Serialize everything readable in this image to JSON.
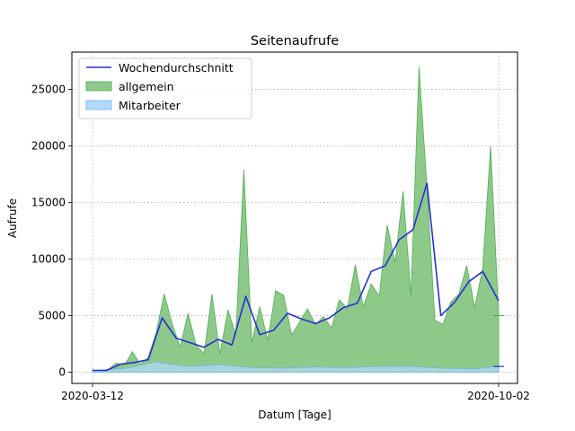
{
  "chart_data": {
    "type": "area",
    "title": "Seitenaufrufe",
    "xlabel": "Datum [Tage]",
    "ylabel": "Aufrufe",
    "x_start": "2020-03-12",
    "x_end": "2020-10-02",
    "x_ticks": [
      "2020-03-12",
      "2020-10-02"
    ],
    "y_ticks": [
      0,
      5000,
      10000,
      15000,
      20000,
      25000
    ],
    "y_tick_labels": [
      "0",
      "5000",
      "10000",
      "15000",
      "20000",
      "25000"
    ],
    "ylim": [
      -1000,
      28300
    ],
    "grid": true,
    "legend_position": "top-left",
    "series": [
      {
        "name": "Wochendurchschnitt",
        "kind": "line",
        "color": "#2630d6",
        "x": [
          "2020-03-12",
          "2020-03-19",
          "2020-03-26",
          "2020-04-02",
          "2020-04-09",
          "2020-04-16",
          "2020-04-23",
          "2020-04-30",
          "2020-05-07",
          "2020-05-14",
          "2020-05-21",
          "2020-05-28",
          "2020-06-04",
          "2020-06-11",
          "2020-06-18",
          "2020-06-25",
          "2020-07-02",
          "2020-07-09",
          "2020-07-16",
          "2020-07-23",
          "2020-07-30",
          "2020-08-06",
          "2020-08-13",
          "2020-08-20",
          "2020-08-27",
          "2020-09-03",
          "2020-09-10",
          "2020-09-17",
          "2020-09-24",
          "2020-10-02"
        ],
        "values": [
          150,
          150,
          700,
          850,
          1100,
          4800,
          3000,
          2600,
          2200,
          2900,
          2400,
          6700,
          3300,
          3700,
          5200,
          4700,
          4300,
          4800,
          5700,
          6100,
          8900,
          9400,
          11700,
          12600,
          16700,
          5000,
          6200,
          8000,
          8900,
          6300
        ]
      },
      {
        "name": "allgemein",
        "kind": "area",
        "color": "#4caf50",
        "fill": "#8ec98a",
        "x": [
          "2020-03-12",
          "2020-03-16",
          "2020-03-20",
          "2020-03-24",
          "2020-03-28",
          "2020-04-01",
          "2020-04-05",
          "2020-04-09",
          "2020-04-13",
          "2020-04-17",
          "2020-04-21",
          "2020-04-25",
          "2020-04-29",
          "2020-05-03",
          "2020-05-07",
          "2020-05-11",
          "2020-05-15",
          "2020-05-19",
          "2020-05-23",
          "2020-05-27",
          "2020-05-31",
          "2020-06-04",
          "2020-06-08",
          "2020-06-12",
          "2020-06-16",
          "2020-06-20",
          "2020-06-24",
          "2020-06-28",
          "2020-07-02",
          "2020-07-06",
          "2020-07-10",
          "2020-07-14",
          "2020-07-18",
          "2020-07-22",
          "2020-07-26",
          "2020-07-30",
          "2020-08-03",
          "2020-08-07",
          "2020-08-11",
          "2020-08-15",
          "2020-08-19",
          "2020-08-23",
          "2020-08-27",
          "2020-08-31",
          "2020-09-04",
          "2020-09-08",
          "2020-09-12",
          "2020-09-16",
          "2020-09-20",
          "2020-09-24",
          "2020-09-28",
          "2020-10-02"
        ],
        "values": [
          200,
          100,
          250,
          800,
          600,
          1800,
          700,
          1300,
          3500,
          6900,
          4300,
          2200,
          5200,
          2400,
          1600,
          6900,
          1600,
          5500,
          3300,
          17900,
          2600,
          5800,
          2800,
          7200,
          6800,
          3300,
          4400,
          5600,
          4200,
          4900,
          3900,
          6400,
          5600,
          9500,
          5800,
          7800,
          6700,
          13000,
          9700,
          16000,
          6800,
          27000,
          16400,
          4600,
          4200,
          6200,
          6900,
          9400,
          5700,
          9200,
          20000,
          5000
        ]
      },
      {
        "name": "Mitarbeiter",
        "kind": "area",
        "color": "#74b4e6",
        "fill": "#b3dafc",
        "x": [
          "2020-03-12",
          "2020-03-28",
          "2020-04-13",
          "2020-04-29",
          "2020-05-15",
          "2020-05-31",
          "2020-06-16",
          "2020-07-02",
          "2020-07-18",
          "2020-08-03",
          "2020-08-19",
          "2020-09-04",
          "2020-09-20",
          "2020-10-02"
        ],
        "values": [
          150,
          300,
          900,
          500,
          650,
          400,
          350,
          450,
          400,
          500,
          500,
          350,
          300,
          500
        ]
      }
    ]
  }
}
